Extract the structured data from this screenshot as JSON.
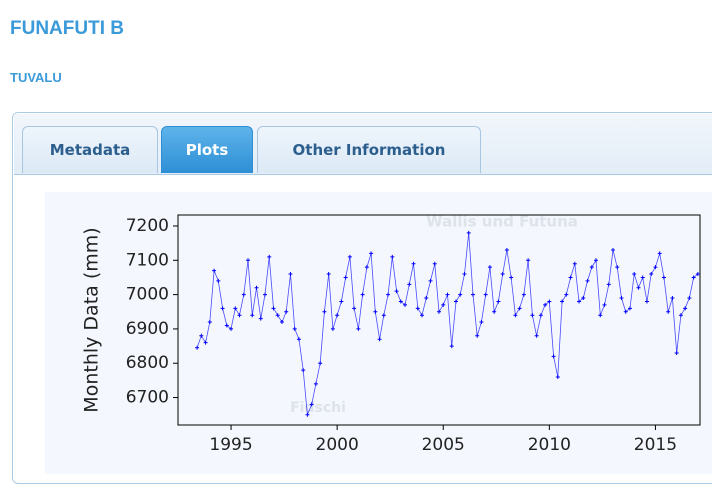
{
  "header": {
    "title": "FUNAFUTI B",
    "subtitle": "TUVALU"
  },
  "tabs": [
    "Metadata",
    "Plots",
    "Other Information"
  ],
  "map_labels": [
    "Wallis und Futuna",
    "Fidschi"
  ],
  "chart_data": {
    "type": "line",
    "y_label": "Monthly Data (mm)",
    "color": "#0000ff",
    "x": [
      1993.4,
      1993.6,
      1993.8,
      1994.0,
      1994.2,
      1994.4,
      1994.6,
      1994.8,
      1995.0,
      1995.2,
      1995.4,
      1995.6,
      1995.8,
      1996.0,
      1996.2,
      1996.4,
      1996.6,
      1996.8,
      1997.0,
      1997.2,
      1997.4,
      1997.6,
      1997.8,
      1998.0,
      1998.2,
      1998.4,
      1998.6,
      1998.8,
      1999.0,
      1999.2,
      1999.4,
      1999.6,
      1999.8,
      2000.0,
      2000.2,
      2000.4,
      2000.6,
      2000.8,
      2001.0,
      2001.2,
      2001.4,
      2001.6,
      2001.8,
      2002.0,
      2002.2,
      2002.4,
      2002.6,
      2002.8,
      2003.0,
      2003.2,
      2003.4,
      2003.6,
      2003.8,
      2004.0,
      2004.2,
      2004.4,
      2004.6,
      2004.8,
      2005.0,
      2005.2,
      2005.4,
      2005.6,
      2005.8,
      2006.0,
      2006.2,
      2006.4,
      2006.6,
      2006.8,
      2007.0,
      2007.2,
      2007.4,
      2007.6,
      2007.8,
      2008.0,
      2008.2,
      2008.4,
      2008.6,
      2008.8,
      2009.0,
      2009.2,
      2009.4,
      2009.6,
      2009.8,
      2010.0,
      2010.2,
      2010.4,
      2010.6,
      2010.8,
      2011.0,
      2011.2,
      2011.4,
      2011.6,
      2011.8,
      2012.0,
      2012.2,
      2012.4,
      2012.6,
      2012.8,
      2013.0,
      2013.2,
      2013.4,
      2013.6,
      2013.8,
      2014.0,
      2014.2,
      2014.4,
      2014.6,
      2014.8,
      2015.0,
      2015.2,
      2015.4,
      2015.6,
      2015.8,
      2016.0,
      2016.2,
      2016.4,
      2016.6,
      2016.8,
      2017.0
    ],
    "values": [
      6845,
      6880,
      6860,
      6920,
      7070,
      7040,
      6960,
      6910,
      6900,
      6960,
      6940,
      7000,
      7100,
      6940,
      7020,
      6930,
      7000,
      7110,
      6960,
      6940,
      6920,
      6950,
      7060,
      6900,
      6870,
      6780,
      6650,
      6680,
      6740,
      6800,
      6950,
      7060,
      6900,
      6940,
      6980,
      7050,
      7110,
      6960,
      6900,
      7000,
      7080,
      7120,
      6950,
      6870,
      6940,
      7000,
      7110,
      7010,
      6980,
      6970,
      7030,
      7090,
      6960,
      6940,
      6990,
      7040,
      7090,
      6950,
      6970,
      7000,
      6850,
      6980,
      7000,
      7060,
      7180,
      7000,
      6880,
      6920,
      7000,
      7080,
      6950,
      6980,
      7060,
      7130,
      7050,
      6940,
      6960,
      7000,
      7100,
      6940,
      6880,
      6940,
      6970,
      6980,
      6820,
      6760,
      6980,
      7000,
      7050,
      7090,
      6980,
      6990,
      7040,
      7080,
      7100,
      6940,
      6970,
      7030,
      7130,
      7080,
      6990,
      6950,
      6960,
      7060,
      7020,
      7050,
      6980,
      7060,
      7080,
      7120,
      7050,
      6950,
      6990,
      6830,
      6940,
      6960,
      6990,
      7050,
      7060
    ],
    "xlim": [
      1992.5,
      2017.1
    ],
    "ylim": [
      6620,
      7232
    ],
    "xticks": [
      1995,
      2000,
      2005,
      2010,
      2015
    ],
    "yticks": [
      6700,
      6800,
      6900,
      7000,
      7100,
      7200
    ]
  }
}
